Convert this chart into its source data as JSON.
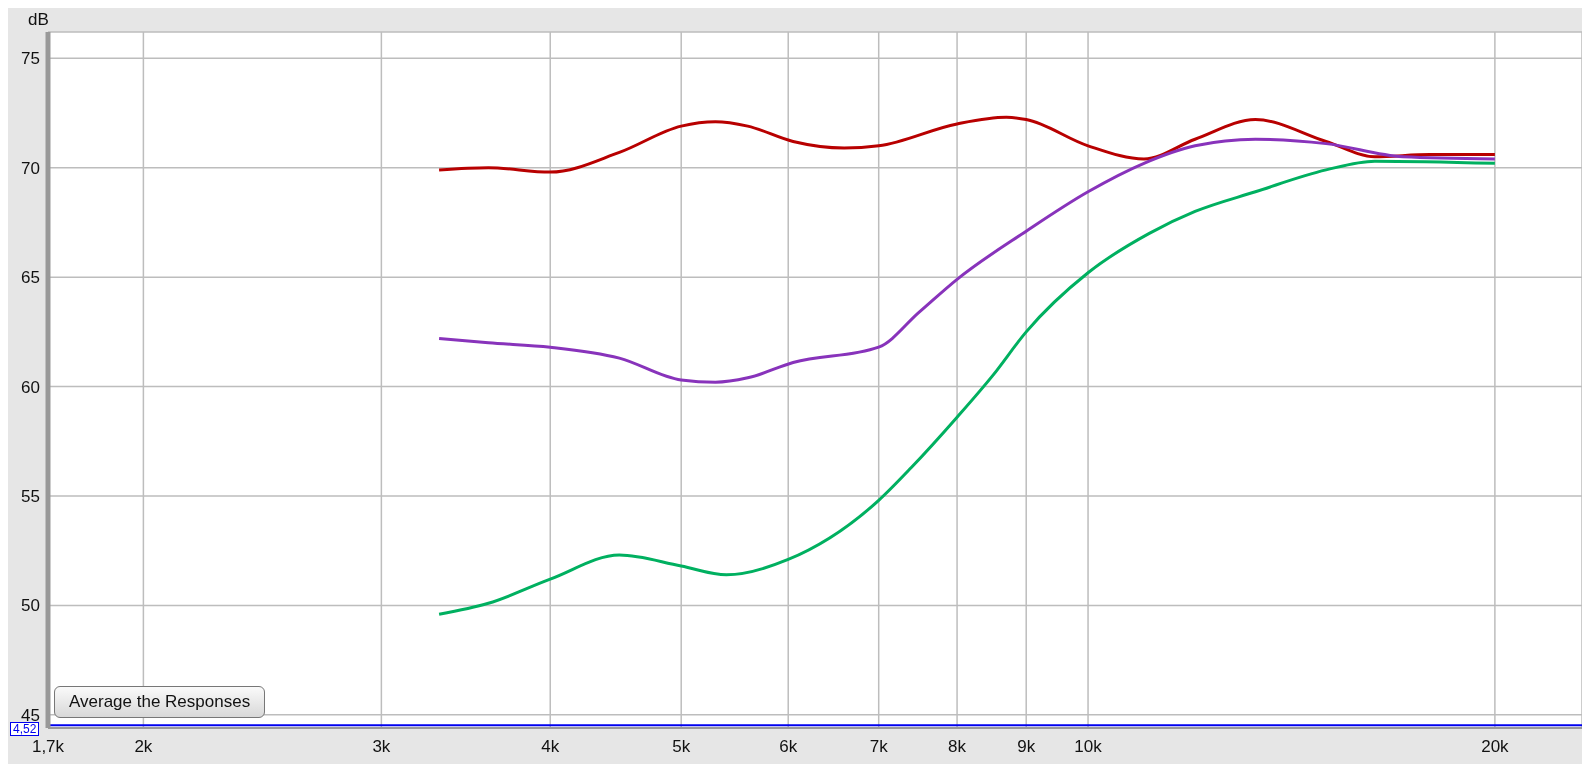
{
  "chart_data": {
    "type": "line",
    "ylabel": "dB",
    "xlim": [
      1700,
      23200
    ],
    "ylim": [
      44.4,
      76.2
    ],
    "log": "x",
    "grid": true,
    "xticks": [
      {
        "value": 1700,
        "label": "1,7k"
      },
      {
        "value": 2000,
        "label": "2k"
      },
      {
        "value": 3000,
        "label": "3k"
      },
      {
        "value": 4000,
        "label": "4k"
      },
      {
        "value": 5000,
        "label": "5k"
      },
      {
        "value": 6000,
        "label": "6k"
      },
      {
        "value": 7000,
        "label": "7k"
      },
      {
        "value": 8000,
        "label": "8k"
      },
      {
        "value": 9000,
        "label": "9k"
      },
      {
        "value": 10000,
        "label": "10k"
      },
      {
        "value": 20000,
        "label": "20k"
      }
    ],
    "yticks": [
      45,
      50,
      55,
      60,
      65,
      70,
      75
    ],
    "series": [
      {
        "color": "#b80000",
        "x": [
          3310,
          3600,
          4000,
          4500,
          5000,
          5300,
          5600,
          6050,
          6600,
          7000,
          8000,
          8700,
          9000,
          10000,
          11000,
          12000,
          13300,
          15000,
          16300,
          17900,
          20000
        ],
        "values": [
          69.9,
          70.0,
          69.8,
          70.7,
          71.9,
          72.1,
          71.9,
          71.2,
          70.9,
          71.0,
          72.0,
          72.3,
          72.2,
          71.0,
          70.4,
          71.3,
          72.2,
          71.2,
          70.5,
          70.6,
          70.6
        ]
      },
      {
        "color": "#8833bb",
        "x": [
          3310,
          3600,
          4000,
          4500,
          5000,
          5300,
          5600,
          6050,
          7000,
          7500,
          8000,
          9000,
          10000,
          11000,
          12000,
          13300,
          15000,
          17100,
          20000
        ],
        "values": [
          62.2,
          62.0,
          61.8,
          61.3,
          60.3,
          60.2,
          60.4,
          61.1,
          61.8,
          63.4,
          64.9,
          67.1,
          68.9,
          70.2,
          71.0,
          71.3,
          71.1,
          70.5,
          70.4
        ]
      },
      {
        "color": "#00b060",
        "x": [
          3310,
          3600,
          4000,
          4500,
          5000,
          5400,
          6000,
          7000,
          7400,
          8000,
          8500,
          9000,
          10000,
          11100,
          12000,
          13300,
          15000,
          16300,
          20000
        ],
        "values": [
          49.6,
          50.1,
          51.2,
          52.3,
          51.8,
          51.4,
          52.1,
          54.8,
          56.3,
          58.6,
          60.5,
          62.5,
          65.2,
          67.0,
          68.0,
          68.9,
          69.9,
          70.3,
          70.2
        ]
      }
    ],
    "ref_lines": [
      {
        "axis": "y",
        "value": 44.52,
        "color": "#0000ee"
      }
    ],
    "annotations": [
      "Average the Responses",
      "4,52"
    ]
  }
}
